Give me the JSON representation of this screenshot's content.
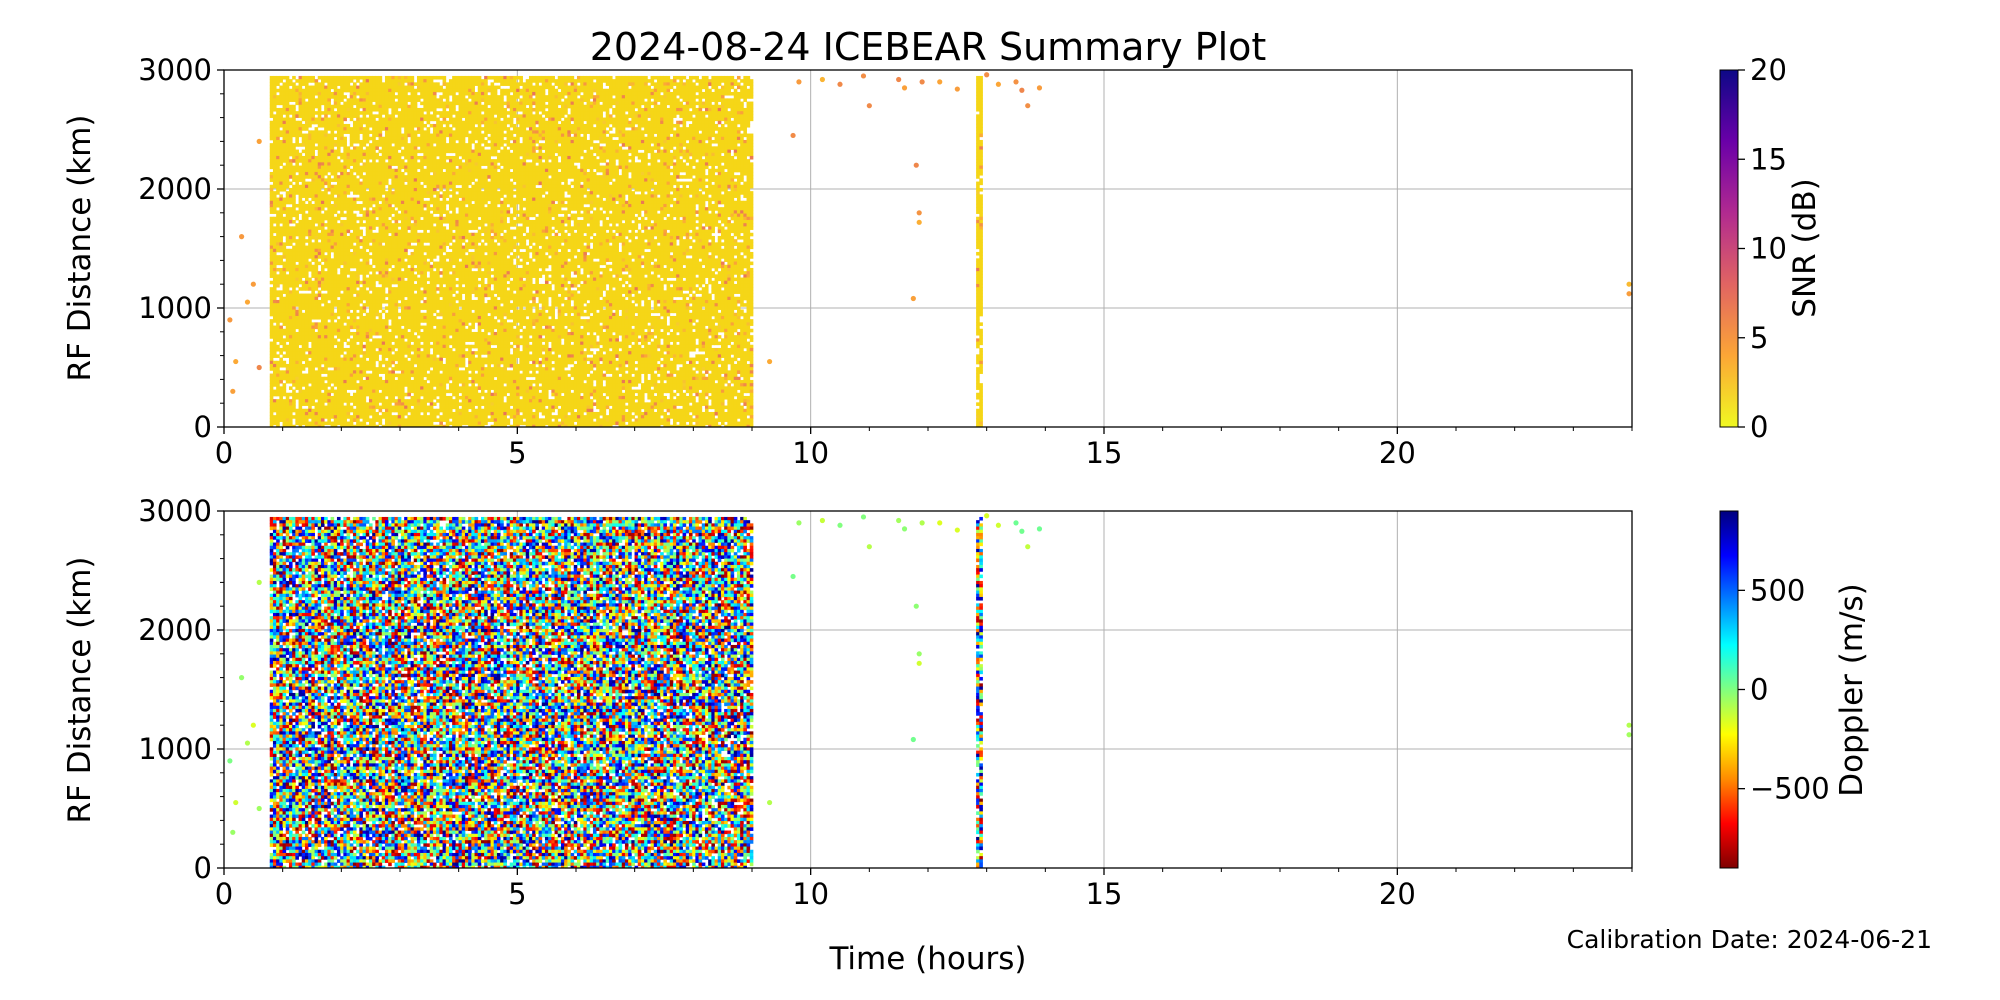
{
  "chart_data": {
    "title": "2024-08-24 ICEBEAR Summary Plot",
    "xlabel": "Time (hours)",
    "footer": "Calibration Date: 2024-06-21",
    "panels": [
      {
        "type": "scatter",
        "ylabel": "RF Distance (km)",
        "xlim": [
          0,
          24
        ],
        "ylim": [
          0,
          3000
        ],
        "xticks": [
          0,
          5,
          10,
          15,
          20
        ],
        "yticks": [
          0,
          1000,
          2000,
          3000
        ],
        "grid": true,
        "colorbar": {
          "label": "SNR (dB)",
          "range": [
            0,
            20
          ],
          "ticks": [
            0,
            5,
            10,
            15,
            20
          ],
          "colormap": "plasma_r",
          "stops": [
            "#f0f921",
            "#fca636",
            "#e16462",
            "#b12a90",
            "#6a00a8",
            "#0d0887"
          ]
        },
        "dominant_color": "#f5d617",
        "regions": [
          {
            "x": [
              0.78,
              9.0
            ],
            "y": [
              0,
              2950
            ],
            "density": "dense"
          },
          {
            "x": [
              12.82,
              12.92
            ],
            "y": [
              0,
              2950
            ],
            "density": "dense"
          }
        ]
      },
      {
        "type": "scatter",
        "ylabel": "RF Distance (km)",
        "xlim": [
          0,
          24
        ],
        "ylim": [
          0,
          3000
        ],
        "xticks": [
          0,
          5,
          10,
          15,
          20
        ],
        "yticks": [
          0,
          1000,
          2000,
          3000
        ],
        "grid": true,
        "colorbar": {
          "label": "Doppler (m/s)",
          "range": [
            -900,
            900
          ],
          "ticks": [
            -500,
            0,
            500
          ],
          "tick_labels": [
            "−500",
            "0",
            "500"
          ],
          "colormap": "jet_r",
          "stops": [
            "#7f0000",
            "#ff0000",
            "#ff8c00",
            "#ffff00",
            "#80ff80",
            "#00ffff",
            "#0080ff",
            "#0000ff",
            "#00007f"
          ]
        },
        "regions": [
          {
            "x": [
              0.78,
              9.0
            ],
            "y": [
              0,
              2950
            ],
            "density": "dense"
          },
          {
            "x": [
              12.82,
              12.92
            ],
            "y": [
              0,
              2950
            ],
            "density": "dense"
          }
        ]
      }
    ]
  }
}
